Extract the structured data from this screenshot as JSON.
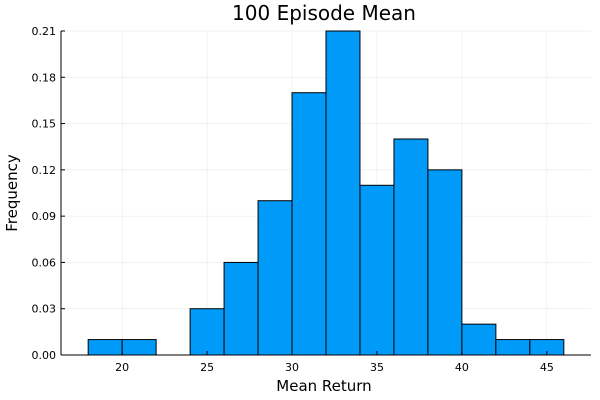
{
  "chart_data": {
    "type": "bar",
    "title": "100 Episode Mean",
    "xlabel": "Mean Return",
    "ylabel": "Frequency",
    "xlim": [
      16.4,
      47.6
    ],
    "ylim": [
      0,
      0.21
    ],
    "xticks": [
      20,
      25,
      30,
      35,
      40,
      45
    ],
    "xtick_labels": [
      "20",
      "25",
      "30",
      "35",
      "40",
      "45"
    ],
    "yticks": [
      0,
      0.03,
      0.06,
      0.09,
      0.12,
      0.15,
      0.18,
      0.21
    ],
    "ytick_labels": [
      "0.00",
      "0.03",
      "0.06",
      "0.09",
      "0.12",
      "0.15",
      "0.18",
      "0.21"
    ],
    "grid": true,
    "legend": false,
    "bar_color": "#009af9",
    "bins": [
      {
        "x0": 18,
        "x1": 20,
        "value": 0.01
      },
      {
        "x0": 20,
        "x1": 22,
        "value": 0.01
      },
      {
        "x0": 22,
        "x1": 24,
        "value": 0.0
      },
      {
        "x0": 24,
        "x1": 26,
        "value": 0.03
      },
      {
        "x0": 26,
        "x1": 28,
        "value": 0.06
      },
      {
        "x0": 28,
        "x1": 30,
        "value": 0.1
      },
      {
        "x0": 30,
        "x1": 32,
        "value": 0.17
      },
      {
        "x0": 32,
        "x1": 34,
        "value": 0.21
      },
      {
        "x0": 34,
        "x1": 36,
        "value": 0.11
      },
      {
        "x0": 36,
        "x1": 38,
        "value": 0.14
      },
      {
        "x0": 38,
        "x1": 40,
        "value": 0.12
      },
      {
        "x0": 40,
        "x1": 42,
        "value": 0.02
      },
      {
        "x0": 42,
        "x1": 44,
        "value": 0.01
      },
      {
        "x0": 44,
        "x1": 46,
        "value": 0.01
      }
    ]
  }
}
